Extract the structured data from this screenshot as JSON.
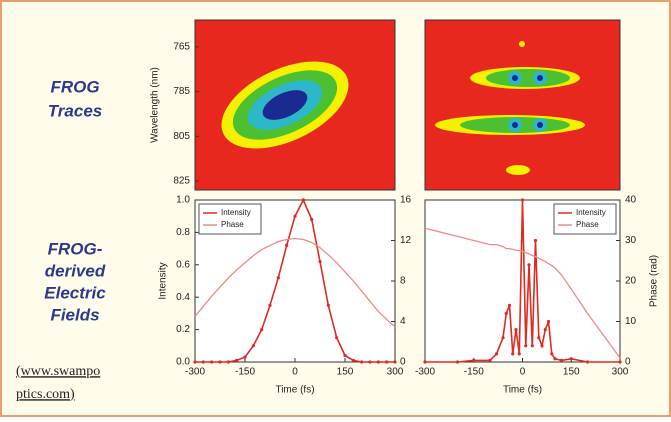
{
  "labels": {
    "frog_traces": [
      "FROG",
      "Traces"
    ],
    "electric_fields": [
      "FROG-",
      "derived",
      "Electric",
      "Fields"
    ],
    "source": [
      "(www.swampo",
      "ptics.com)"
    ]
  },
  "chart_data": [
    {
      "type": "heatmap-image",
      "ylabel": "Wavelength (nm)",
      "ylim": [
        753,
        829
      ],
      "yticks": [
        765,
        785,
        805,
        825
      ],
      "y_inverted": true,
      "background": "#e8281e"
    },
    {
      "type": "heatmap-image",
      "background": "#e8281e"
    },
    {
      "type": "line",
      "xlabel": "Time (fs)",
      "ylabel": "Intensity",
      "legend": "upper left",
      "xlim": [
        -300,
        300
      ],
      "xticks": [
        -300,
        -150,
        0,
        150,
        300
      ],
      "ylim": [
        0,
        1
      ],
      "yticks": [
        {
          "value": 0,
          "label": "0.0"
        },
        {
          "value": 0.2,
          "label": "0.2"
        },
        {
          "value": 0.4,
          "label": "0.4"
        },
        {
          "value": 0.6,
          "label": "0.6"
        },
        {
          "value": 0.8,
          "label": "0.8"
        },
        {
          "value": 1,
          "label": "1.0"
        }
      ],
      "y2lim": [
        0,
        16
      ],
      "y2ticks": [
        0,
        4,
        8,
        12,
        16
      ],
      "x": [
        -300,
        -275,
        -250,
        -225,
        -200,
        -175,
        -150,
        -125,
        -100,
        -75,
        -50,
        -25,
        0,
        25,
        50,
        75,
        100,
        125,
        150,
        175,
        200,
        225,
        250,
        275,
        300
      ],
      "series": [
        {
          "name": "Intensity",
          "color": "#e02a22",
          "markers": true,
          "values": [
            0,
            0,
            0,
            0,
            0,
            0.01,
            0.03,
            0.1,
            0.2,
            0.35,
            0.52,
            0.72,
            0.9,
            1.0,
            0.88,
            0.62,
            0.35,
            0.15,
            0.04,
            0.01,
            0,
            0,
            0,
            0,
            0
          ]
        },
        {
          "name": "Phase",
          "color": "#f08a84",
          "axis": "y2",
          "markers": false,
          "values": [
            4.5,
            5.5,
            6.5,
            7.4,
            8.3,
            9.1,
            9.8,
            10.5,
            11.1,
            11.5,
            11.9,
            12.1,
            12.2,
            12.1,
            11.8,
            11.3,
            10.6,
            9.8,
            8.9,
            8.0,
            7.0,
            6.0,
            5.0,
            4.2,
            3.5
          ]
        }
      ]
    },
    {
      "type": "line",
      "xlabel": "Time (fs)",
      "y2label": "Phase (rad)",
      "legend": "upper right",
      "xlim": [
        -300,
        300
      ],
      "xticks": [
        -300,
        -150,
        0,
        150,
        300
      ],
      "ylim": [
        0,
        1
      ],
      "y2lim": [
        0,
        40
      ],
      "y2ticks": [
        0,
        10,
        20,
        30,
        40
      ],
      "x": [
        -300,
        -200,
        -150,
        -100,
        -80,
        -60,
        -50,
        -40,
        -30,
        -20,
        -10,
        0,
        10,
        20,
        30,
        40,
        50,
        60,
        70,
        80,
        90,
        100,
        120,
        150,
        200,
        300
      ],
      "series": [
        {
          "name": "Intensity",
          "color": "#e02a22",
          "markers": true,
          "values": [
            0,
            0,
            0.01,
            0.01,
            0.05,
            0.15,
            0.3,
            0.35,
            0.05,
            0.2,
            0.05,
            1.0,
            0.1,
            0.6,
            0.1,
            0.75,
            0.15,
            0.1,
            0.2,
            0.25,
            0.05,
            0.02,
            0.01,
            0.02,
            0,
            0
          ]
        },
        {
          "name": "Phase",
          "color": "#f08a84",
          "axis": "y2",
          "markers": false,
          "values": [
            33,
            31,
            30,
            29,
            29,
            28.5,
            28,
            28,
            27.8,
            27.6,
            27.5,
            27.3,
            27,
            26.7,
            26.3,
            26,
            25.6,
            25.2,
            24.8,
            24.3,
            23.8,
            23.2,
            21.5,
            18,
            12,
            1
          ]
        }
      ]
    }
  ]
}
